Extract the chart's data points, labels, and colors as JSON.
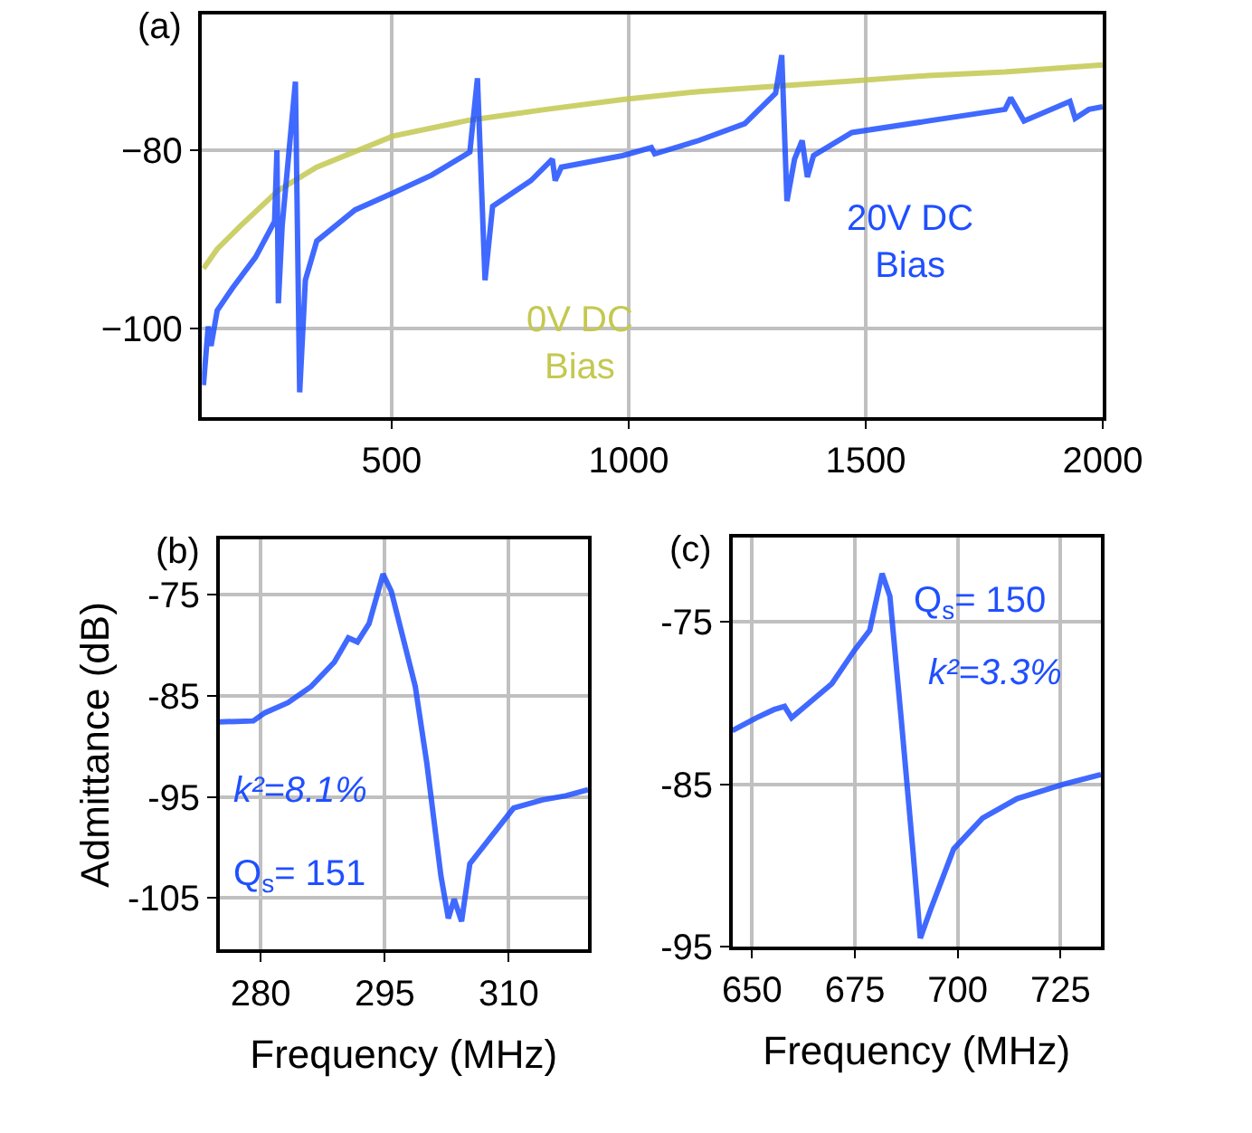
{
  "chart_data": [
    {
      "type": "line",
      "title": "(a)",
      "xlim": [
        100,
        2000
      ],
      "ylim": [
        -110,
        -64.7
      ],
      "xticks": [
        500,
        1000,
        1500,
        2000
      ],
      "yticks": [
        {
          "value": -100,
          "label": "−100"
        },
        {
          "value": -80,
          "label": "−80"
        }
      ],
      "grid": true,
      "legend": false,
      "series": [
        {
          "name": "0V DC Bias",
          "color": "#c4c850",
          "x": [
            103,
            132,
            181,
            261,
            342,
            503,
            665,
            826,
            987,
            1148,
            1310,
            1471,
            1632,
            1794,
            2000
          ],
          "values": [
            -93.3,
            -91.1,
            -88.5,
            -84.5,
            -81.9,
            -78.4,
            -76.6,
            -75.4,
            -74.3,
            -73.4,
            -72.8,
            -72.2,
            -71.6,
            -71.2,
            -70.4
          ]
        },
        {
          "name": "20V DC Bias",
          "color": "#1f4fff",
          "x": [
            103,
            113,
            119,
            132,
            164,
            213,
            253,
            258,
            261,
            269,
            297,
            306,
            318,
            342,
            423,
            503,
            584,
            665,
            681,
            697,
            713,
            794,
            839,
            845,
            858,
            987,
            1048,
            1055,
            1148,
            1245,
            1310,
            1323,
            1334,
            1350,
            1366,
            1377,
            1390,
            1471,
            1632,
            1794,
            1806,
            1834,
            1931,
            1942,
            1971,
            2000
          ],
          "values": [
            -106.4,
            -99.8,
            -102,
            -98,
            -95.5,
            -92,
            -88,
            -80,
            -97.2,
            -88.5,
            -72.3,
            -107.2,
            -94.6,
            -90.2,
            -86.7,
            -84.8,
            -82.8,
            -80.2,
            -71.9,
            -94.6,
            -86.3,
            -83.4,
            -81,
            -83.4,
            -81.9,
            -80.6,
            -79.7,
            -80.4,
            -78.9,
            -77,
            -73.6,
            -69.3,
            -85.7,
            -81,
            -78.9,
            -83,
            -80.6,
            -78,
            -76.7,
            -75.4,
            -74.1,
            -76.7,
            -74.5,
            -76.4,
            -75.4,
            -75.1
          ]
        }
      ]
    },
    {
      "type": "line",
      "title": "(b)",
      "xlabel": "Frequency (MHz)",
      "ylabel": "Admittance (dB)",
      "xlim": [
        275,
        319.6
      ],
      "ylim": [
        -110.1,
        -69.6
      ],
      "xticks": [
        280,
        295,
        310
      ],
      "yticks": [
        -105,
        -95,
        -85,
        -75
      ],
      "grid": true,
      "legend": false,
      "annotations": [
        "k²=8.1%",
        "Q$_{s}$= 151"
      ],
      "series": [
        {
          "color": "#1f4fff",
          "x": [
            275,
            279.1,
            280.5,
            283.3,
            286.1,
            288.9,
            290.6,
            291.7,
            293.1,
            294.8,
            295.8,
            298.7,
            300.1,
            301.8,
            302.7,
            303.4,
            304.3,
            305.3,
            307.8,
            310.6,
            314.1,
            316.9,
            319.6
          ],
          "values": [
            -87.6,
            -87.5,
            -86.7,
            -85.7,
            -84.1,
            -81.7,
            -79.3,
            -79.7,
            -77.9,
            -73.0,
            -74.7,
            -84.1,
            -91.7,
            -102.8,
            -107,
            -105.1,
            -107.3,
            -101.6,
            -99,
            -96.1,
            -95.3,
            -94.9,
            -94.3
          ]
        }
      ]
    },
    {
      "type": "line",
      "title": "(c)",
      "xlabel": "Frequency (MHz)",
      "xlim": [
        645.2,
        734.8
      ],
      "ylim": [
        -95,
        -69.8
      ],
      "xticks": [
        650,
        675,
        700,
        725
      ],
      "yticks": [
        -95,
        -85,
        -75
      ],
      "grid": true,
      "legend": false,
      "annotations": [
        "Q$_{s}$= 150",
        "k²=3.3%"
      ],
      "series": [
        {
          "color": "#1f4fff",
          "x": [
            645.2,
            651.1,
            655.3,
            657.9,
            659.6,
            663.8,
            669.4,
            675,
            678.6,
            681.6,
            683.5,
            686.3,
            689.1,
            690.9,
            693.3,
            699,
            706,
            714.4,
            725.7,
            734.8
          ],
          "values": [
            -81.7,
            -80.9,
            -80.4,
            -80.2,
            -80.9,
            -80,
            -78.8,
            -76.7,
            -75.5,
            -72,
            -73.4,
            -81.1,
            -89.1,
            -94.5,
            -92.8,
            -89,
            -87.1,
            -85.9,
            -85,
            -84.4
          ]
        }
      ]
    }
  ]
}
